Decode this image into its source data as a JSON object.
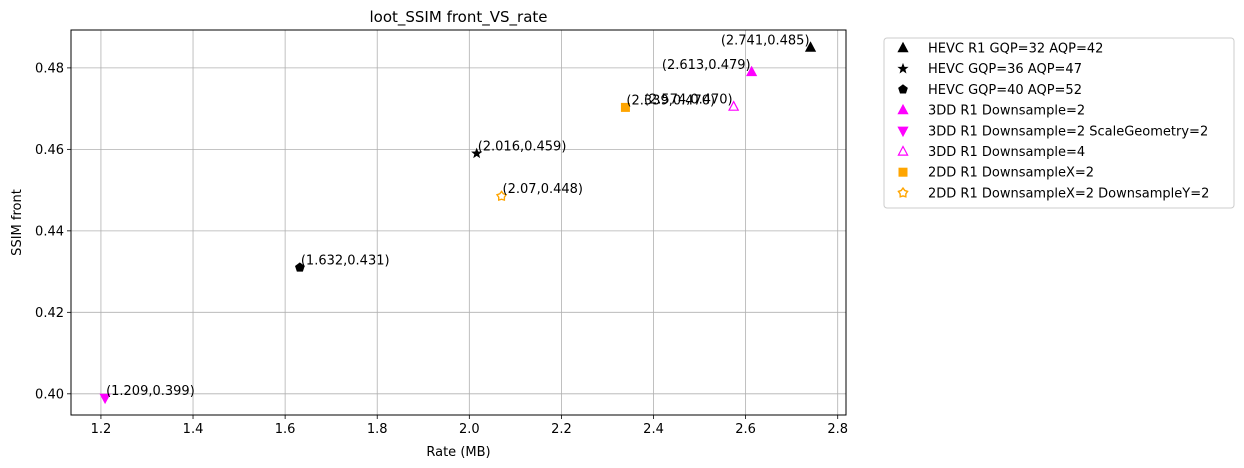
{
  "chart_data": {
    "type": "scatter",
    "title": "loot_SSIM front_VS_rate",
    "xlabel": "Rate (MB)",
    "ylabel": "SSIM front",
    "xlim": [
      1.135,
      2.818
    ],
    "ylim": [
      0.3948,
      0.4893
    ],
    "xticks": [
      "1.2",
      "1.4",
      "1.6",
      "1.8",
      "2.0",
      "2.2",
      "2.4",
      "2.6",
      "2.8"
    ],
    "yticks": [
      "0.40",
      "0.42",
      "0.44",
      "0.46",
      "0.48"
    ],
    "grid": true,
    "legend_position": "outside-right-top",
    "series": [
      {
        "name": "HEVC R1 GQP=32 AQP=42",
        "marker": "triangle-up",
        "color": "#000000",
        "filled": true,
        "points": [
          {
            "x": 2.741,
            "y": 0.485,
            "label": "(2.741,0.485)"
          }
        ]
      },
      {
        "name": "HEVC GQP=36 AQP=47",
        "marker": "star",
        "color": "#000000",
        "filled": true,
        "points": [
          {
            "x": 2.016,
            "y": 0.459,
            "label": "(2.016,0.459)"
          }
        ]
      },
      {
        "name": "HEVC GQP=40 AQP=52",
        "marker": "pentagon",
        "color": "#000000",
        "filled": true,
        "points": [
          {
            "x": 1.632,
            "y": 0.431,
            "label": "(1.632,0.431)"
          }
        ]
      },
      {
        "name": "3DD R1 Downsample=2",
        "marker": "triangle-up",
        "color": "#ff00ff",
        "filled": true,
        "points": [
          {
            "x": 2.613,
            "y": 0.479,
            "label": "(2.613,0.479)"
          }
        ]
      },
      {
        "name": "3DD R1 Downsample=2 ScaleGeometry=2",
        "marker": "triangle-down",
        "color": "#ff00ff",
        "filled": true,
        "points": [
          {
            "x": 1.209,
            "y": 0.399,
            "label": "(1.209,0.399)"
          }
        ]
      },
      {
        "name": "3DD R1 Downsample=4",
        "marker": "triangle-up",
        "color": "#ff00ff",
        "filled": false,
        "points": [
          {
            "x": 2.574,
            "y": 0.4705,
            "label": "(2.574,0.470)"
          }
        ]
      },
      {
        "name": "2DD R1 DownsampleX=2",
        "marker": "square",
        "color": "#ffa500",
        "filled": true,
        "points": [
          {
            "x": 2.339,
            "y": 0.4703,
            "label": "(2.339,0.470)"
          }
        ]
      },
      {
        "name": "2DD R1 DownsampleX=2 DownsampleY=2",
        "marker": "sun",
        "color": "#ffa500",
        "filled": false,
        "points": [
          {
            "x": 2.07,
            "y": 0.4485,
            "label": "(2.07,0.448)"
          }
        ]
      }
    ]
  }
}
